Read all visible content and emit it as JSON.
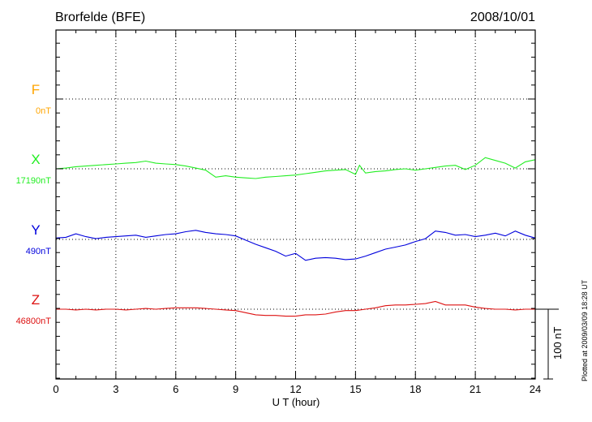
{
  "chart_data": {
    "type": "line",
    "title": "Brorfelde (BFE)",
    "date": "2008/10/01",
    "xlabel": "U T (hour)",
    "xlim": [
      0,
      24
    ],
    "xticks": [
      "0",
      "3",
      "6",
      "9",
      "12",
      "15",
      "18",
      "21",
      "24"
    ],
    "grid": true,
    "scale_bar_label": "100 nT",
    "scale_bar_nT": 100,
    "plotted_note": "Plotted at 2009/03/09 18:28 UT",
    "series": [
      {
        "name": "F",
        "baseline_label": "0nT",
        "baseline_nT": 0,
        "color": "#ffa500",
        "x": [],
        "y": []
      },
      {
        "name": "X",
        "baseline_label": "17190nT",
        "baseline_nT": 17190,
        "color": "#22ee22",
        "x": [
          0,
          0.5,
          1,
          1.5,
          2,
          2.5,
          3,
          3.5,
          4,
          4.5,
          5,
          5.5,
          6,
          6.5,
          7,
          7.5,
          8,
          8.5,
          9,
          9.5,
          10,
          10.5,
          11,
          11.5,
          12,
          12.5,
          13,
          13.5,
          14,
          14.5,
          15,
          15.2,
          15.5,
          16,
          16.5,
          17,
          17.5,
          18,
          18.5,
          19,
          19.5,
          20,
          20.5,
          21,
          21.5,
          22,
          22.5,
          23,
          23.5,
          24
        ],
        "y": [
          17190,
          17191,
          17193,
          17194,
          17195,
          17196,
          17197,
          17198,
          17199,
          17201,
          17198,
          17197,
          17196,
          17194,
          17191,
          17188,
          17178,
          17180,
          17178,
          17177,
          17176,
          17178,
          17179,
          17180,
          17181,
          17183,
          17185,
          17187,
          17188,
          17189,
          17182,
          17195,
          17184,
          17186,
          17187,
          17189,
          17190,
          17188,
          17190,
          17192,
          17194,
          17195,
          17189,
          17195,
          17206,
          17202,
          17198,
          17191,
          17200,
          17203
        ]
      },
      {
        "name": "Y",
        "baseline_label": "490nT",
        "baseline_nT": 490,
        "color": "#0000dd",
        "x": [
          0,
          0.5,
          1,
          1.5,
          2,
          2.5,
          3,
          3.5,
          4,
          4.5,
          5,
          5.5,
          6,
          6.5,
          7,
          7.5,
          8,
          8.5,
          9,
          9.5,
          10,
          10.5,
          11,
          11.5,
          12,
          12.5,
          13,
          13.5,
          14,
          14.5,
          15,
          15.5,
          16,
          16.5,
          17,
          17.5,
          18,
          18.5,
          19,
          19.5,
          20,
          20.5,
          21,
          21.5,
          22,
          22.5,
          23,
          23.5,
          24
        ],
        "y": [
          492,
          493,
          498,
          494,
          491,
          493,
          494,
          495,
          496,
          493,
          495,
          497,
          498,
          501,
          503,
          500,
          498,
          497,
          495,
          489,
          483,
          478,
          473,
          466,
          470,
          460,
          463,
          464,
          463,
          461,
          462,
          466,
          471,
          476,
          479,
          482,
          487,
          491,
          502,
          500,
          496,
          497,
          494,
          496,
          499,
          495,
          502,
          496,
          492
        ]
      },
      {
        "name": "Z",
        "baseline_label": "46800nT",
        "baseline_nT": 46800,
        "color": "#dd1111",
        "x": [
          0,
          0.5,
          1,
          1.5,
          2,
          2.5,
          3,
          3.5,
          4,
          4.5,
          5,
          5.5,
          6,
          6.5,
          7,
          7.5,
          8,
          8.5,
          9,
          9.5,
          10,
          10.5,
          11,
          11.5,
          12,
          12.5,
          13,
          13.5,
          14,
          14.5,
          15,
          15.5,
          16,
          16.5,
          17,
          17.5,
          18,
          18.5,
          19,
          19.5,
          20,
          20.5,
          21,
          21.5,
          22,
          22.5,
          23,
          23.5,
          24
        ],
        "y": [
          46800,
          46800,
          46799,
          46800,
          46799,
          46800,
          46800,
          46799,
          46800,
          46801,
          46800,
          46801,
          46802,
          46802,
          46802,
          46801,
          46800,
          46799,
          46798,
          46795,
          46792,
          46791,
          46791,
          46790,
          46790,
          46792,
          46792,
          46793,
          46796,
          46798,
          46798,
          46800,
          46802,
          46805,
          46806,
          46806,
          46807,
          46808,
          46811,
          46806,
          46806,
          46806,
          46803,
          46801,
          46800,
          46800,
          46799,
          46800,
          46800
        ]
      }
    ]
  }
}
